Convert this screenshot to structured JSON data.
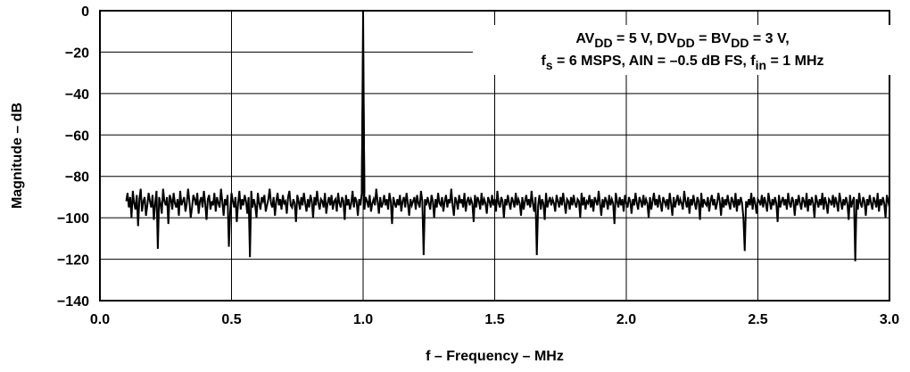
{
  "chart_data": {
    "type": "line",
    "title": "",
    "xlabel": "f – Frequency – MHz",
    "ylabel": "Magnitude – dB",
    "xlim": [
      0.0,
      3.0
    ],
    "ylim": [
      -140,
      0
    ],
    "xticks": [
      0.0,
      0.5,
      1.0,
      1.5,
      2.0,
      2.5,
      3.0
    ],
    "xtick_labels": [
      "0.0",
      "0.5",
      "1.0",
      "1.5",
      "2.0",
      "2.5",
      "3.0"
    ],
    "yticks": [
      0,
      -20,
      -40,
      -60,
      -80,
      -100,
      -120,
      -140
    ],
    "ytick_labels": [
      "0",
      "−20",
      "−40",
      "−60",
      "−80",
      "−100",
      "−120",
      "−140"
    ],
    "grid": true,
    "annotation": {
      "line1": [
        {
          "t": "AV"
        },
        {
          "t": "DD",
          "sub": true
        },
        {
          "t": " = 5 V, DV"
        },
        {
          "t": "DD",
          "sub": true
        },
        {
          "t": " = BV"
        },
        {
          "t": "DD",
          "sub": true
        },
        {
          "t": " = 3 V,"
        }
      ],
      "line2": [
        {
          "t": "f"
        },
        {
          "t": "s",
          "sub": true
        },
        {
          "t": " = 6 MSPS, AIN = –0.5 dB FS, f"
        },
        {
          "t": "in",
          "sub": true
        },
        {
          "t": " = 1 MHz"
        }
      ]
    },
    "series": [
      {
        "x_start": 0.1,
        "x_end": 3.0,
        "noise_floor_db": -93,
        "peak": {
          "x": 1.0,
          "y": 0
        },
        "spurs": [
          {
            "x": 0.22,
            "y": -115
          },
          {
            "x": 0.49,
            "y": -114
          },
          {
            "x": 0.57,
            "y": -119
          },
          {
            "x": 1.23,
            "y": -118
          },
          {
            "x": 1.66,
            "y": -118
          },
          {
            "x": 2.45,
            "y": -116
          },
          {
            "x": 2.87,
            "y": -121
          }
        ],
        "y": [
          -92,
          -88,
          -95,
          -90,
          -100,
          -87,
          -93,
          -96,
          -89,
          -104,
          -91,
          -86,
          -97,
          -92,
          -90,
          -99,
          -94,
          -88,
          -92,
          -95,
          -89,
          -101,
          -93,
          -87,
          -96,
          -90,
          -93,
          -98,
          -86,
          -92,
          -94,
          -90,
          -103,
          -89,
          -91,
          -96,
          -88,
          -93,
          -95,
          -91,
          -99,
          -87,
          -94,
          -92,
          -90,
          -97,
          -93,
          -86,
          -92,
          -100,
          -95,
          -89,
          -91,
          -94,
          -88,
          -98,
          -92,
          -90,
          -95,
          -87,
          -93,
          -101,
          -91,
          -89,
          -96,
          -92,
          -94,
          -88,
          -97,
          -90,
          -93,
          -95,
          -86,
          -92,
          -99,
          -91,
          -94,
          -89,
          -93,
          -97,
          -88,
          -92,
          -95,
          -90,
          -102,
          -93,
          -87,
          -96,
          -91,
          -94,
          -89,
          -92,
          -98,
          -90,
          -93,
          -87,
          -95,
          -91,
          -94,
          -100,
          -88,
          -93,
          -96,
          -90,
          -92,
          -89,
          -97,
          -94,
          -91,
          -86,
          -93,
          -95,
          -90,
          -99,
          -92,
          -88,
          -94,
          -91,
          -96,
          -89,
          -93,
          -92,
          -98,
          -90,
          -87,
          -94,
          -95,
          -91,
          -93,
          -102,
          -89,
          -92,
          -96,
          -90,
          -94,
          -88,
          -93,
          -97,
          -91,
          -95,
          -89,
          -92,
          -100,
          -90,
          -94,
          -87,
          -93,
          -96,
          -91,
          -92,
          -95,
          -88,
          -98,
          -93,
          -90,
          -94,
          -89,
          -96,
          -92,
          -91,
          -97,
          -88,
          -93,
          -95,
          -90,
          -92,
          -101,
          -89,
          -94,
          -91,
          -96,
          -93,
          -87,
          -95,
          -90,
          -92,
          -99,
          -91,
          -94,
          -88,
          -93,
          -96,
          -90,
          -92,
          -95,
          -89,
          -97,
          -93,
          -91,
          -94,
          -86,
          -92,
          -98,
          -90,
          -95,
          -93,
          -89,
          -94,
          -91,
          -96,
          -88,
          -92,
          -103,
          -90,
          -93,
          -95,
          -91,
          -94,
          -89,
          -97,
          -92,
          -90,
          -95,
          -88,
          -93,
          -99,
          -91,
          -94,
          -92,
          -90,
          -96,
          -89,
          -93,
          -95,
          -87,
          -92,
          -98,
          -91,
          -94,
          -90,
          -93,
          -96,
          -89,
          -92,
          -100,
          -91,
          -95,
          -88,
          -93,
          -94,
          -90,
          -97,
          -92,
          -89,
          -95,
          -91,
          -93,
          -86,
          -94,
          -99,
          -90,
          -92,
          -96,
          -89,
          -93,
          -91,
          -95,
          -88,
          -97,
          -92,
          -90,
          -94,
          -91,
          -93,
          -102,
          -89,
          -95,
          -90,
          -92,
          -96,
          -88,
          -94,
          -91,
          -93,
          -98,
          -90,
          -92,
          -95,
          -89,
          -94,
          -91,
          -97,
          -87,
          -93,
          -95,
          -90,
          -92,
          -100,
          -91,
          -94,
          -89,
          -93,
          -96,
          -90,
          -92,
          -95,
          -88,
          -94,
          -91,
          -93,
          -99,
          -90,
          -96,
          -92,
          -89,
          -94,
          -91,
          -95,
          -87,
          -93,
          -97,
          -90,
          -92,
          -94,
          -89,
          -96,
          -91,
          -93,
          -101,
          -88,
          -95,
          -92,
          -90,
          -94,
          -91,
          -93,
          -97,
          -89,
          -92,
          -95,
          -90,
          -94,
          -88,
          -93,
          -98,
          -91,
          -92,
          -96,
          -90,
          -94,
          -89,
          -93,
          -95,
          -91,
          -92,
          -100,
          -88,
          -94,
          -90,
          -96,
          -92,
          -93,
          -89,
          -95,
          -91,
          -97,
          -90,
          -92,
          -94,
          -87,
          -93,
          -99,
          -91,
          -95,
          -90,
          -92,
          -96,
          -89,
          -94,
          -91,
          -93,
          -103,
          -88,
          -92,
          -95,
          -90,
          -94,
          -91,
          -97,
          -89,
          -93,
          -95,
          -90,
          -92,
          -98,
          -91,
          -94,
          -88,
          -93,
          -96,
          -90,
          -92,
          -95,
          -89,
          -94,
          -91,
          -93,
          -100,
          -90,
          -96,
          -92,
          -88,
          -94,
          -91,
          -95,
          -89,
          -93,
          -97,
          -90,
          -92,
          -94,
          -91,
          -96,
          -88,
          -93,
          -99,
          -90,
          -95,
          -92,
          -89,
          -94,
          -91,
          -93,
          -96,
          -87,
          -92,
          -95,
          -90,
          -98,
          -91,
          -94,
          -89,
          -93,
          -96,
          -90,
          -92,
          -101,
          -88,
          -95,
          -91,
          -93,
          -94,
          -90,
          -97,
          -92,
          -89,
          -94,
          -91,
          -96,
          -93,
          -88,
          -92,
          -99,
          -90,
          -95,
          -91,
          -94,
          -89,
          -93,
          -96,
          -90,
          -92,
          -95,
          -88,
          -97,
          -91,
          -94,
          -90,
          -93,
          -100,
          -89,
          -92,
          -95,
          -91,
          -94,
          -88,
          -96,
          -90,
          -93,
          -98,
          -91,
          -92,
          -94,
          -89,
          -95,
          -90,
          -93,
          -97,
          -88,
          -92,
          -96,
          -91,
          -94,
          -90,
          -93,
          -102,
          -89,
          -95,
          -92,
          -90,
          -94,
          -91,
          -96,
          -88,
          -93,
          -95,
          -90,
          -92,
          -99,
          -91,
          -94,
          -89,
          -93,
          -96,
          -90,
          -92,
          -95,
          -88,
          -97,
          -91,
          -94,
          -90,
          -93,
          -100,
          -89,
          -92,
          -95,
          -91,
          -94,
          -88,
          -96,
          -90,
          -93,
          -98,
          -91,
          -92,
          -94,
          -89,
          -95,
          -90,
          -93,
          -97,
          -88,
          -92,
          -96,
          -91,
          -94,
          -90,
          -93,
          -101,
          -89,
          -95,
          -92,
          -90,
          -94,
          -91,
          -96,
          -88,
          -93,
          -95,
          -90,
          -92,
          -99,
          -91,
          -94,
          -89,
          -93,
          -96,
          -90,
          -92,
          -95,
          -88,
          -97,
          -91,
          -94,
          -90,
          -93,
          -100,
          -89,
          -92,
          -95
        ]
      }
    ]
  }
}
